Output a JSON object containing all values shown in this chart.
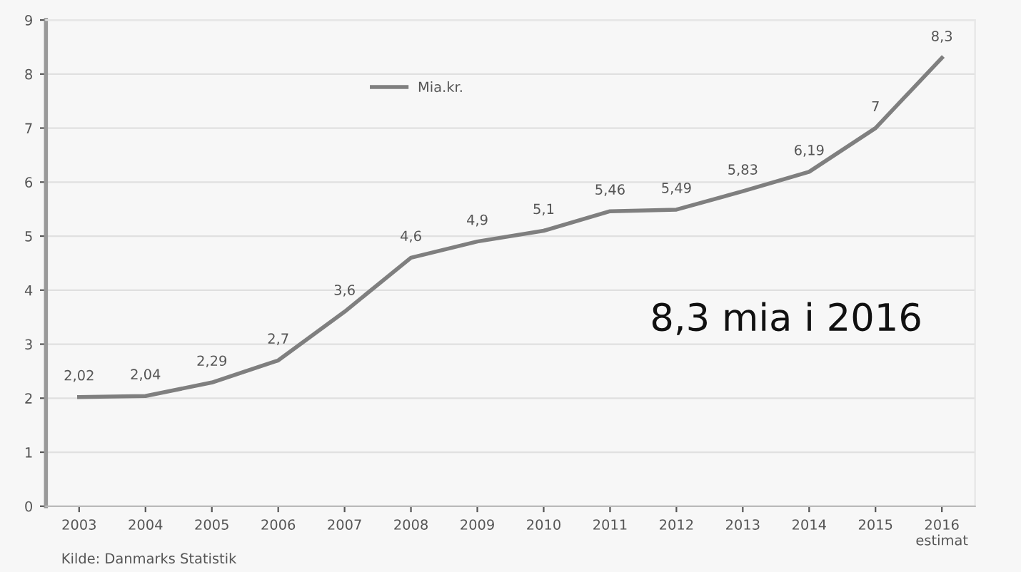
{
  "chart_data": {
    "type": "line",
    "categories": [
      "2003",
      "2004",
      "2005",
      "2006",
      "2007",
      "2008",
      "2009",
      "2010",
      "2011",
      "2012",
      "2013",
      "2014",
      "2015",
      "2016\nestimat"
    ],
    "series": [
      {
        "name": "Mia.kr.",
        "color": "#7f7f7f",
        "values": [
          2.02,
          2.04,
          2.29,
          2.7,
          3.6,
          4.6,
          4.9,
          5.1,
          5.46,
          5.49,
          5.83,
          6.19,
          7,
          8.3
        ],
        "value_labels": [
          "2,02",
          "2,04",
          "2,29",
          "2,7",
          "3,6",
          "4,6",
          "4,9",
          "5,1",
          "5,46",
          "5,49",
          "5,83",
          "6,19",
          "7",
          "8,3"
        ]
      }
    ],
    "ylim": [
      0,
      9
    ],
    "yticks": [
      0,
      1,
      2,
      3,
      4,
      5,
      6,
      7,
      8,
      9
    ],
    "grid": "y",
    "legend": "top",
    "marker": "none",
    "line_style": "solid",
    "annotations": [
      "8,3 mia i 2016",
      "Kilde: Danmarks Statistik"
    ]
  }
}
